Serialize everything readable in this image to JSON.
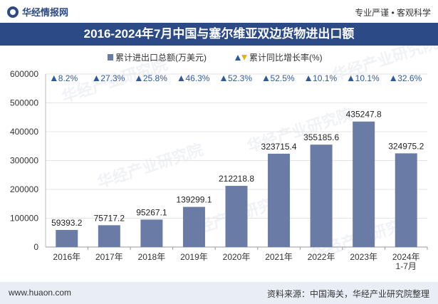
{
  "header": {
    "brand": "华经情报网",
    "slogan": "专业严谨 • 客观科学"
  },
  "footer": {
    "website": "www.huaon.com",
    "source": "资料来源：中国海关，华经产业研究院整理"
  },
  "colors": {
    "bar": "#6a7ca6",
    "title_bg": "#2b4a86",
    "triangle": "#2f5a9a",
    "legend_triangle": "#e7b31a"
  },
  "chart_data": {
    "type": "bar",
    "title": "2016-2024年7月中国与塞尔维亚双边货物进出口额",
    "categories": [
      "2016年",
      "2017年",
      "2018年",
      "2019年",
      "2020年",
      "2021年",
      "2022年",
      "2023年",
      "2024年\n1-7月"
    ],
    "series": [
      {
        "name": "累计进出口总额(万美元)",
        "values": [
          59393.2,
          75717.2,
          95267.1,
          139299.1,
          212218.8,
          323715.4,
          355185.6,
          435247.8,
          324975.2
        ]
      },
      {
        "name": "累计同比增长率(%)",
        "values": [
          8.2,
          27.3,
          25.8,
          46.3,
          52.3,
          52.5,
          10.1,
          10.1,
          32.6
        ]
      }
    ],
    "value_labels": [
      "59393.2",
      "75717.2",
      "95267.1",
      "139299.1",
      "212218.8",
      "323715.4",
      "355185.6",
      "435247.8",
      "324975.2"
    ],
    "growth_labels": [
      "8.2%",
      "27.3%",
      "25.8%",
      "46.3%",
      "52.3%",
      "52.5%",
      "10.1%",
      "10.1%",
      "32.6%"
    ],
    "y_ticks": [
      "0",
      "100000",
      "200000",
      "300000",
      "400000",
      "500000",
      "600000"
    ],
    "ylim": [
      0,
      600000
    ],
    "legend": [
      "累计进出口总额(万美元)",
      "累计同比增长率(%)"
    ],
    "watermark": "华经产业研究院"
  }
}
